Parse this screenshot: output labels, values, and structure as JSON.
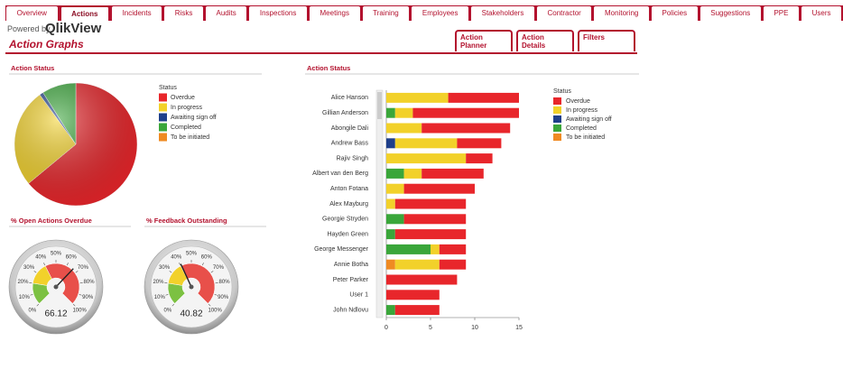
{
  "tabs": [
    "Overview",
    "Actions",
    "Incidents",
    "Risks",
    "Audits",
    "Inspections",
    "Meetings",
    "Training",
    "Employees",
    "Stakeholders",
    "Contractor",
    "Monitoring",
    "Policies",
    "Suggestions",
    "PPE",
    "Users"
  ],
  "active_tab": 1,
  "header": {
    "powered_by": "Powered by",
    "brand": "QlikView",
    "title": "Action Graphs"
  },
  "buttons": [
    "Action Planner",
    "Action Details",
    "Filters"
  ],
  "pie": {
    "type": "pie",
    "title": "Action Status",
    "legend_title": "Status",
    "categories": [
      "Overdue",
      "In progress",
      "Awaiting sign off",
      "Completed",
      "To be initiated"
    ],
    "values": [
      64,
      26,
      1,
      9,
      0
    ],
    "colors": [
      "#e8262b",
      "#f2d12a",
      "#1f3f8a",
      "#3aa63a",
      "#ef8a22"
    ]
  },
  "gauges": [
    {
      "type": "gauge",
      "title": "% Open Actions Overdue",
      "value": 66.12,
      "lim": [
        0,
        100
      ],
      "bands": [
        [
          0,
          20,
          "#7cc142"
        ],
        [
          20,
          40,
          "#f2d12a"
        ],
        [
          40,
          100,
          "#e8504a"
        ]
      ],
      "ticks": [
        {
          "value": 0,
          "label": "0%"
        },
        {
          "value": 10,
          "label": "10%"
        },
        {
          "value": 20,
          "label": "20%"
        },
        {
          "value": 30,
          "label": "30%"
        },
        {
          "value": 40,
          "label": "40%"
        },
        {
          "value": 50,
          "label": "50%"
        },
        {
          "value": 60,
          "label": "60%"
        },
        {
          "value": 70,
          "label": "70%"
        },
        {
          "value": 80,
          "label": "80%"
        },
        {
          "value": 90,
          "label": "90%"
        },
        {
          "value": 100,
          "label": "100%"
        }
      ]
    },
    {
      "type": "gauge",
      "title": "% Feedback Outstanding",
      "value": 40.82,
      "lim": [
        0,
        100
      ],
      "bands": [
        [
          0,
          20,
          "#7cc142"
        ],
        [
          20,
          40,
          "#f2d12a"
        ],
        [
          40,
          100,
          "#e8504a"
        ]
      ],
      "ticks": [
        {
          "value": 0,
          "label": "0%"
        },
        {
          "value": 10,
          "label": "10%"
        },
        {
          "value": 20,
          "label": "20%"
        },
        {
          "value": 30,
          "label": "30%"
        },
        {
          "value": 40,
          "label": "40%"
        },
        {
          "value": 50,
          "label": "50%"
        },
        {
          "value": 60,
          "label": "60%"
        },
        {
          "value": 70,
          "label": "70%"
        },
        {
          "value": 80,
          "label": "80%"
        },
        {
          "value": 90,
          "label": "90%"
        },
        {
          "value": 100,
          "label": "100%"
        }
      ]
    }
  ],
  "bar": {
    "type": "bar",
    "orientation": "horizontal",
    "stacked": true,
    "title": "Action Status",
    "legend_title": "Status",
    "categories": [
      "Alice Hanson",
      "Gillian Anderson",
      "Abongile Dali",
      "Andrew Bass",
      "Rajiv Singh",
      "Albert van den Berg",
      "Anton Fotana",
      "Alex Mayburg",
      "Georgie Stryden",
      "Hayden Green",
      "George Messenger",
      "Annie Botha",
      "Peter Parker",
      "User 1",
      "John Ndlovu"
    ],
    "series": [
      {
        "name": "Overdue",
        "color": "#e8262b",
        "values": [
          8,
          12,
          10,
          5,
          3,
          7,
          8,
          8,
          7,
          8,
          3,
          3,
          8,
          6,
          5
        ]
      },
      {
        "name": "In progress",
        "color": "#f2d12a",
        "values": [
          7,
          2,
          4,
          7,
          9,
          2,
          2,
          1,
          0,
          0,
          1,
          5,
          0,
          0,
          0
        ]
      },
      {
        "name": "Awaiting sign off",
        "color": "#1f3f8a",
        "values": [
          0,
          0,
          0,
          1,
          0,
          0,
          0,
          0,
          0,
          0,
          0,
          0,
          0,
          0,
          0
        ]
      },
      {
        "name": "Completed",
        "color": "#3aa63a",
        "values": [
          0,
          1,
          0,
          0,
          0,
          2,
          0,
          0,
          2,
          1,
          5,
          0,
          0,
          0,
          1
        ]
      },
      {
        "name": "To be initiated",
        "color": "#ef8a22",
        "values": [
          0,
          0,
          0,
          0,
          0,
          0,
          0,
          0,
          0,
          0,
          0,
          1,
          0,
          0,
          0
        ]
      }
    ],
    "xlim": [
      0,
      15
    ],
    "xticks": [
      0,
      5,
      10,
      15
    ]
  }
}
